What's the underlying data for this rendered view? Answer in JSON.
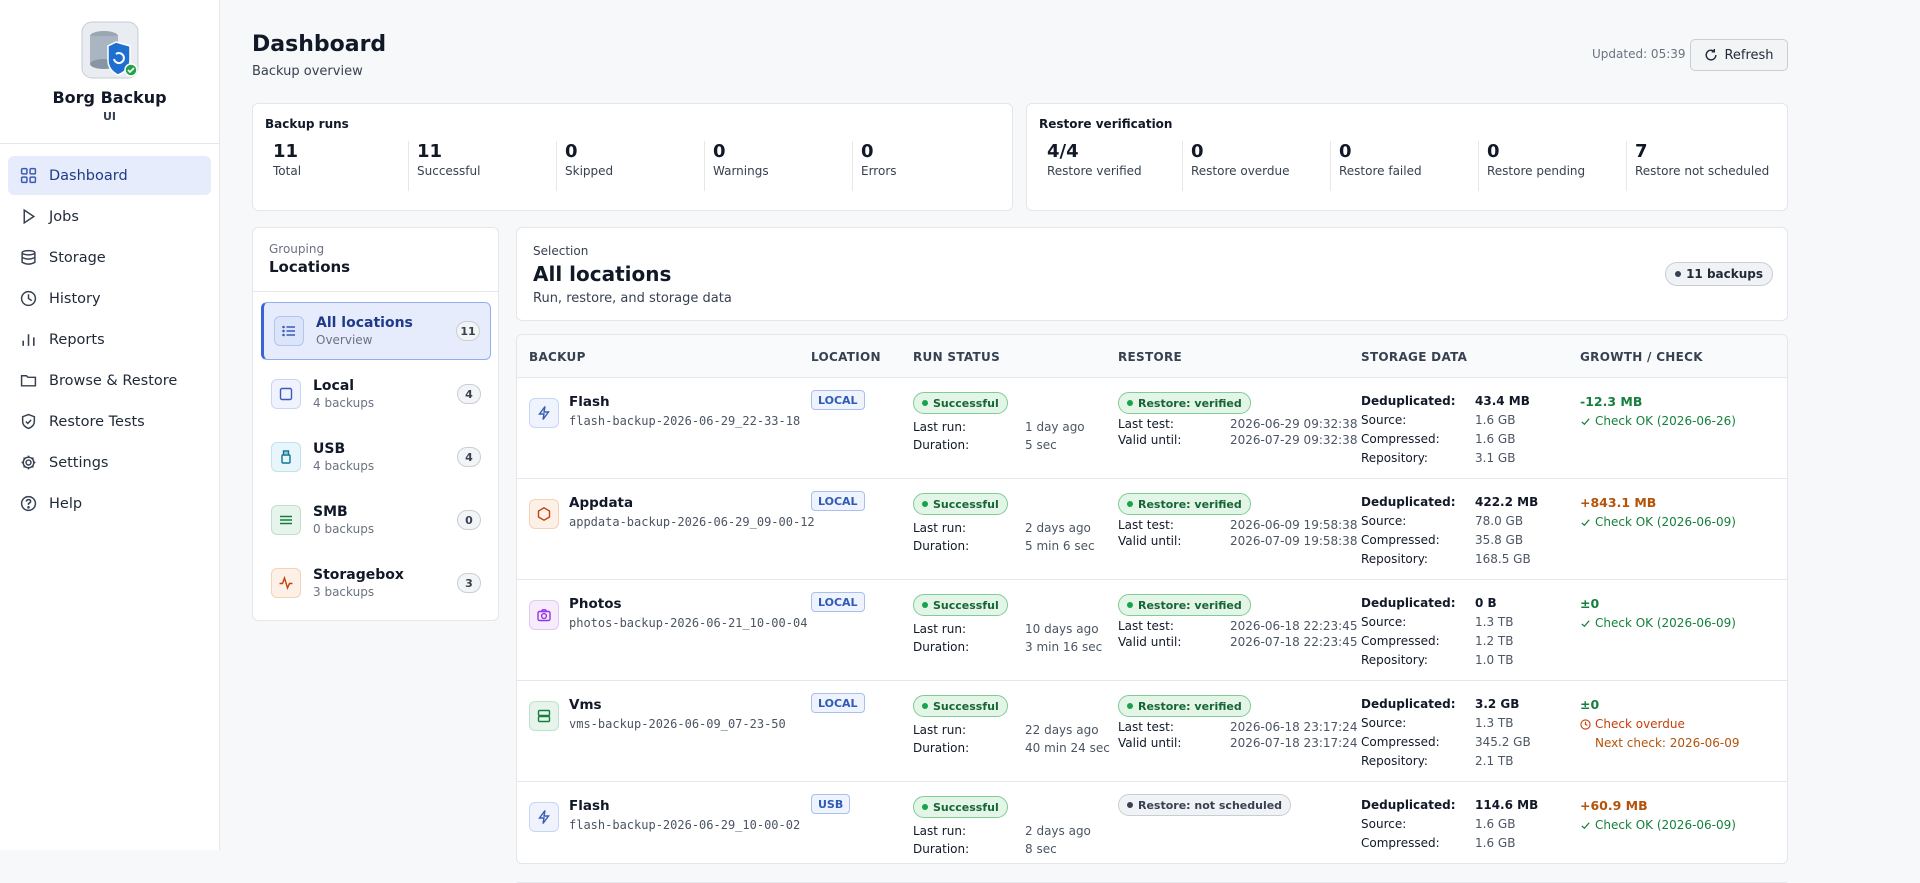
{
  "app": {
    "title": "Borg Backup",
    "subtitle": "UI"
  },
  "nav": [
    {
      "label": "Dashboard",
      "icon": "grid-icon",
      "active": true
    },
    {
      "label": "Jobs",
      "icon": "play-icon"
    },
    {
      "label": "Storage",
      "icon": "database-icon"
    },
    {
      "label": "History",
      "icon": "clock-icon"
    },
    {
      "label": "Reports",
      "icon": "bar-chart-icon"
    },
    {
      "label": "Browse & Restore",
      "icon": "folder-icon"
    },
    {
      "label": "Restore Tests",
      "icon": "shield-check-icon"
    },
    {
      "label": "Settings",
      "icon": "gear-icon"
    },
    {
      "label": "Help",
      "icon": "help-icon"
    }
  ],
  "header": {
    "title": "Dashboard",
    "subtitle": "Backup overview",
    "updated": "Updated: 05:39",
    "refresh_label": "Refresh"
  },
  "backup_runs": {
    "title": "Backup runs",
    "stats": [
      {
        "value": "11",
        "label": "Total"
      },
      {
        "value": "11",
        "label": "Successful"
      },
      {
        "value": "0",
        "label": "Skipped"
      },
      {
        "value": "0",
        "label": "Warnings"
      },
      {
        "value": "0",
        "label": "Errors"
      }
    ]
  },
  "restore_verification": {
    "title": "Restore verification",
    "stats": [
      {
        "value": "4/4",
        "label": "Restore verified"
      },
      {
        "value": "0",
        "label": "Restore overdue"
      },
      {
        "value": "0",
        "label": "Restore failed"
      },
      {
        "value": "0",
        "label": "Restore pending"
      },
      {
        "value": "7",
        "label": "Restore not scheduled"
      }
    ]
  },
  "grouping": {
    "small": "Grouping",
    "title": "Locations",
    "items": [
      {
        "name": "All locations",
        "sub": "Overview",
        "count": "11",
        "icon": "list-icon"
      },
      {
        "name": "Local",
        "sub": "4 backups",
        "count": "4",
        "icon": "square-icon"
      },
      {
        "name": "USB",
        "sub": "4 backups",
        "count": "4",
        "icon": "usb-icon"
      },
      {
        "name": "SMB",
        "sub": "0 backups",
        "count": "0",
        "icon": "network-icon"
      },
      {
        "name": "Storagebox",
        "sub": "3 backups",
        "count": "3",
        "icon": "activity-icon"
      }
    ]
  },
  "selection": {
    "small": "Selection",
    "title": "All locations",
    "subtitle": "Run, restore, and storage data",
    "badge": "11 backups"
  },
  "table": {
    "headers": [
      "BACKUP",
      "LOCATION",
      "RUN STATUS",
      "RESTORE",
      "STORAGE DATA",
      "GROWTH / CHECK"
    ],
    "labels": {
      "last_run": "Last run:",
      "duration": "Duration:",
      "last_test": "Last test:",
      "valid_until": "Valid until:",
      "dedup": "Deduplicated:",
      "source": "Source:",
      "compressed": "Compressed:",
      "repository": "Repository:"
    },
    "rows": [
      {
        "name": "Flash",
        "file": "flash-backup-2026-06-29_22-33-18",
        "icon": "bolt-icon",
        "location": "LOCAL",
        "status": "Successful",
        "last_run": "1 day ago",
        "duration": "5 sec",
        "restore": "Restore: verified",
        "last_test": "2026-06-29 09:32:38",
        "valid_until": "2026-07-29 09:32:38",
        "dedup": "43.4 MB",
        "source": "1.6 GB",
        "compressed": "1.6 GB",
        "repository": "3.1 GB",
        "growth": "-12.3 MB",
        "check": "Check OK (2026-06-26)"
      },
      {
        "name": "Appdata",
        "file": "appdata-backup-2026-06-29_09-00-12",
        "icon": "hexagon-icon",
        "location": "LOCAL",
        "status": "Successful",
        "last_run": "2 days ago",
        "duration": "5 min 6 sec",
        "restore": "Restore: verified",
        "last_test": "2026-06-09 19:58:38",
        "valid_until": "2026-07-09 19:58:38",
        "dedup": "422.2 MB",
        "source": "78.0 GB",
        "compressed": "35.8 GB",
        "repository": "168.5 GB",
        "growth": "+843.1 MB",
        "check": "Check OK (2026-06-09)"
      },
      {
        "name": "Photos",
        "file": "photos-backup-2026-06-21_10-00-04",
        "icon": "camera-icon",
        "location": "LOCAL",
        "status": "Successful",
        "last_run": "10 days ago",
        "duration": "3 min 16 sec",
        "restore": "Restore: verified",
        "last_test": "2026-06-18 22:23:45",
        "valid_until": "2026-07-18 22:23:45",
        "dedup": "0 B",
        "source": "1.3 TB",
        "compressed": "1.2 TB",
        "repository": "1.0 TB",
        "growth": "±0",
        "check": "Check OK (2026-06-09)"
      },
      {
        "name": "Vms",
        "file": "vms-backup-2026-06-09_07-23-50",
        "icon": "server-icon",
        "location": "LOCAL",
        "status": "Successful",
        "last_run": "22 days ago",
        "duration": "40 min 24 sec",
        "restore": "Restore: verified",
        "last_test": "2026-06-18 23:17:24",
        "valid_until": "2026-07-18 23:17:24",
        "dedup": "3.2 GB",
        "source": "1.3 TB",
        "compressed": "345.2 GB",
        "repository": "2.1 TB",
        "growth": "±0",
        "check": "Check overdue",
        "next_check": "Next check: 2026-06-09"
      },
      {
        "name": "Flash",
        "file": "flash-backup-2026-06-29_10-00-02",
        "icon": "bolt-icon",
        "location": "USB",
        "status": "Successful",
        "last_run": "2 days ago",
        "duration": "8 sec",
        "restore": "Restore: not scheduled",
        "dedup": "114.6 MB",
        "source": "1.6 GB",
        "compressed": "1.6 GB",
        "growth": "+60.9 MB",
        "check": "Check OK (2026-06-09)"
      }
    ]
  }
}
